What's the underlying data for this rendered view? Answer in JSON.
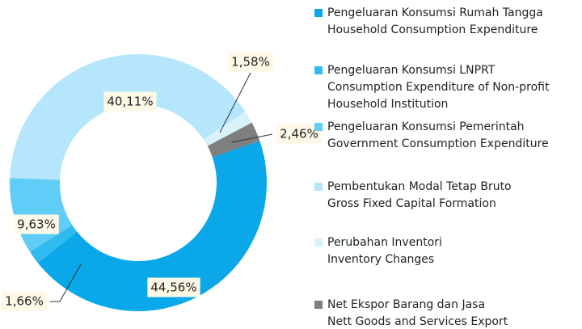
{
  "chart_data": {
    "type": "donut",
    "categories": [
      [
        "Pengeluaran Konsumsi Rumah Tangga",
        "Household Consumption Expenditure"
      ],
      [
        "Pengeluaran Konsumsi LNPRT",
        "Consumption Expenditure of Non-profit",
        "Household Institution"
      ],
      [
        "Pengeluaran Konsumsi Pemerintah",
        "Government Consumption Expenditure"
      ],
      [
        "Pembentukan Modal Tetap Bruto",
        "Gross Fixed Capital Formation"
      ],
      [
        "Perubahan Inventori",
        "Inventory Changes"
      ],
      [
        "Net Ekspor Barang dan Jasa",
        "Nett Goods and Services Export"
      ]
    ],
    "values": [
      44.56,
      1.66,
      9.63,
      40.11,
      1.58,
      2.46
    ],
    "value_labels": [
      "44,56%",
      "1,66%",
      "9,63%",
      "40,11%",
      "1,58%",
      "2,46%"
    ],
    "colors": [
      "#0aa8e8",
      "#2fbaf0",
      "#5fcdf6",
      "#b5e6fb",
      "#d8f2fc",
      "#7f7f7f"
    ]
  }
}
